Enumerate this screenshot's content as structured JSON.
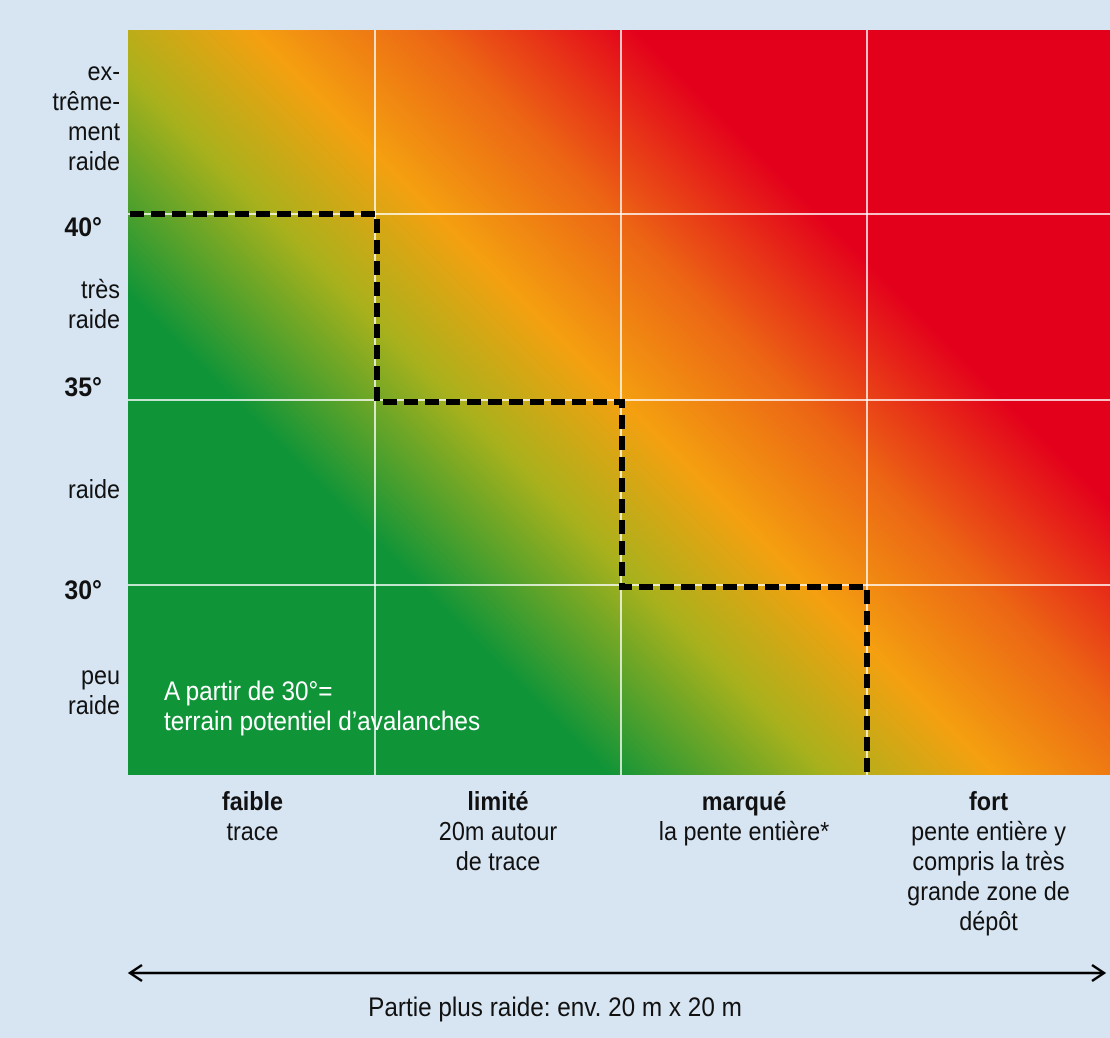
{
  "chart_data": {
    "type": "heatmap",
    "title": "",
    "ylabel": "",
    "xlabel": "Partie plus raide: env. 20 m x 20 m",
    "y_ticks": [
      40,
      35,
      30
    ],
    "y_tick_labels": [
      "40°",
      "35°",
      "30°"
    ],
    "y_bands": [
      {
        "label": "ex-\ntrême-\nment\nraide",
        "from": 40,
        "to": 45
      },
      {
        "label": "très\nraide",
        "from": 35,
        "to": 40
      },
      {
        "label": "raide",
        "from": 30,
        "to": 35
      },
      {
        "label": "peu\nraide",
        "from": 25,
        "to": 30
      }
    ],
    "categories": [
      {
        "title": "faible",
        "desc": "trace"
      },
      {
        "title": "limité",
        "desc": "20m autour\nde trace"
      },
      {
        "title": "marqué",
        "desc": "la pente entière*"
      },
      {
        "title": "fort",
        "desc": "pente entière y\ncompris la très\ngrande zone de\ndépôt"
      }
    ],
    "threshold_line": {
      "style": "dashed",
      "color": "#000000",
      "steps": [
        {
          "category": "faible",
          "max_slope": 40
        },
        {
          "category": "limité",
          "max_slope": 35
        },
        {
          "category": "marqué",
          "max_slope": 30
        },
        {
          "category": "fort",
          "max_slope": 25
        }
      ]
    },
    "annotation": "A partir de 30°=\nterrain potentiel d’avalanches",
    "colors": {
      "safe": "#0f9438",
      "caution": "#f4a010",
      "danger": "#e3001b",
      "background": "#d7e5f3",
      "grid": "#ffffff"
    }
  }
}
